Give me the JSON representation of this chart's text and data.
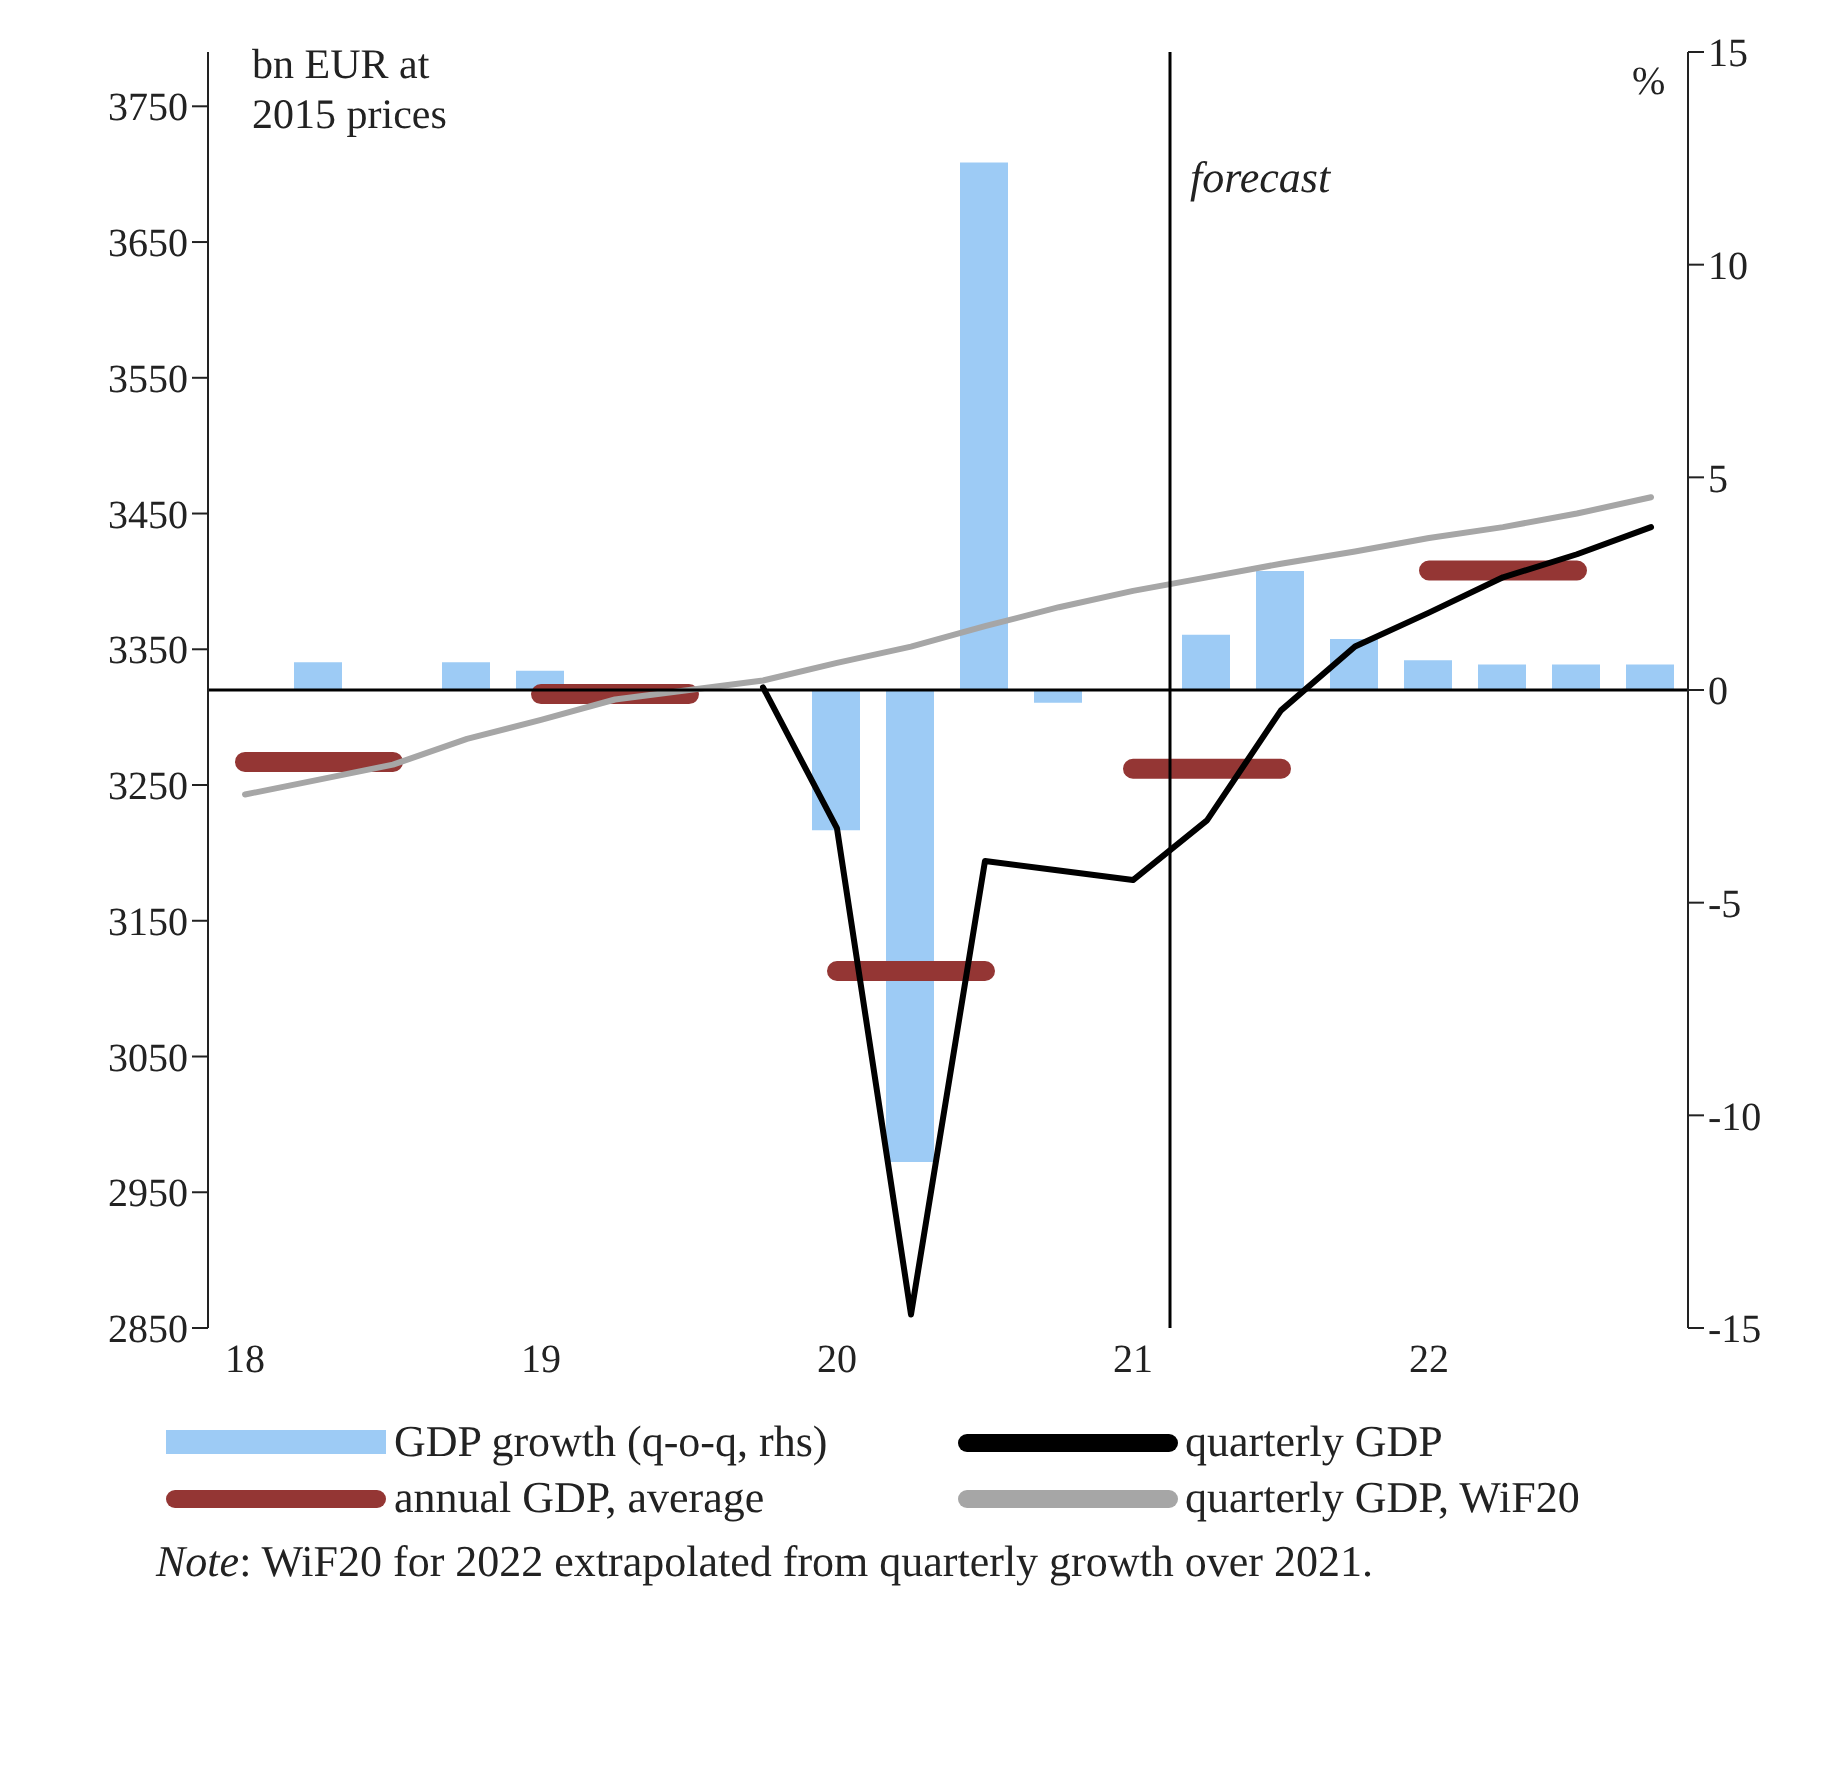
{
  "chart_data": {
    "type": "bar",
    "ylabel": "bn EUR at 2015 prices",
    "y2label": "%",
    "x": [
      2018,
      2018.25,
      2018.5,
      2018.75,
      2019,
      2019.25,
      2019.5,
      2019.75,
      2020,
      2020.25,
      2020.5,
      2020.75,
      2021,
      2021.25,
      2021.5,
      2021.75,
      2022,
      2022.25,
      2022.5,
      2022.75
    ],
    "xlim": [
      2017.875,
      2022.875
    ],
    "xticks": [
      {
        "value": 2018,
        "label": "18"
      },
      {
        "value": 2019,
        "label": "19"
      },
      {
        "value": 2020,
        "label": "20"
      },
      {
        "value": 2021,
        "label": "21"
      },
      {
        "value": 2022,
        "label": "22"
      }
    ],
    "ylim": [
      2850,
      3790
    ],
    "yticks": [
      2850,
      2950,
      3050,
      3150,
      3250,
      3350,
      3450,
      3550,
      3650,
      3750
    ],
    "y2lim": [
      -15,
      15
    ],
    "y2ticks": [
      -15,
      -10,
      -5,
      0,
      5,
      10,
      15
    ],
    "series": [
      {
        "name": "GDP growth (q-o-q, rhs)",
        "axis": "y2",
        "color": "#9dcbf5",
        "values": [
          0,
          0.65,
          0,
          0.65,
          0.45,
          null,
          null,
          null,
          -3.3,
          -11.1,
          12.4,
          -0.3,
          0,
          1.3,
          2.8,
          1.2,
          0.7,
          0.6,
          0.6,
          0.6
        ]
      },
      {
        "name": "annual GDP, average",
        "type": "line",
        "color": "#943634",
        "values": [
          3267,
          3267,
          3267,
          null,
          3317,
          3317,
          3317,
          null,
          3113,
          3113,
          3113,
          null,
          3262,
          3262,
          3262,
          null,
          3408,
          3408,
          3408,
          null
        ]
      },
      {
        "name": "quarterly GDP",
        "type": "line",
        "color": "#000000",
        "values": [
          null,
          null,
          null,
          null,
          null,
          null,
          null,
          3322,
          3218,
          2860,
          3194,
          3187,
          3180,
          3224,
          3305,
          3352,
          3377,
          3403,
          3420,
          3440
        ]
      },
      {
        "name": "quarterly GDP, WiF20",
        "type": "line",
        "color": "#a6a6a6",
        "values": [
          3243,
          3254,
          3265,
          3284,
          3298,
          3313,
          3320,
          3327,
          3340,
          3352,
          3367,
          3381,
          3393,
          3403,
          3413,
          3422,
          3432,
          3440,
          3450,
          3462
        ]
      }
    ],
    "ref_lines": [
      {
        "axis": "y2",
        "value": 0,
        "color": "#000000"
      },
      {
        "axis": "x",
        "value": 2021.125,
        "label": "forecast",
        "color": "#000000"
      }
    ],
    "legend": "bottom",
    "annotations": [
      "Note: WiF20 for 2022 extrapolated from quarterly growth over 2021."
    ]
  }
}
